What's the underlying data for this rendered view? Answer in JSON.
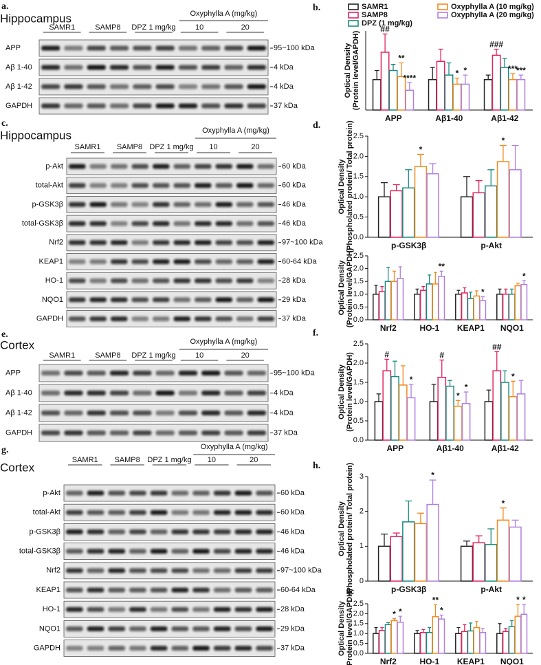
{
  "legend": [
    {
      "name": "SAMR1",
      "color": "#222222"
    },
    {
      "name": "SAMP8",
      "color": "#e0245e"
    },
    {
      "name": "DPZ (1 mg/kg)",
      "color": "#1a8a80"
    },
    {
      "name": "Oxyphylla A (10 mg/kg)",
      "color": "#f28a1e"
    },
    {
      "name": "Oxyphylla A (20 mg/kg)",
      "color": "#b07fe0"
    }
  ],
  "blots": [
    {
      "panel": "a.",
      "title": "Hippocampus",
      "groups": [
        "SAMR1",
        "SAMP8",
        "DPZ 1 mg/kg"
      ],
      "treatment": "Oxyphylla A (mg/kg)",
      "doses": [
        "10",
        "20"
      ],
      "rows": [
        {
          "label": "APP",
          "size": "95~100 kDa"
        },
        {
          "label": "Aβ 1-40",
          "size": "4 kDa"
        },
        {
          "label": "Aβ 1-42",
          "size": "4 kDa"
        },
        {
          "label": "GAPDH",
          "size": "37 kDa"
        }
      ]
    },
    {
      "panel": "c.",
      "title": "Hippocampus",
      "groups": [
        "SAMR1",
        "SAMP8",
        "DPZ 1 mg/kg"
      ],
      "treatment": "Oxyphylla A (mg/kg)",
      "doses": [
        "10",
        "20"
      ],
      "rows": [
        {
          "label": "p-Akt",
          "size": "60 kDa"
        },
        {
          "label": "total-Akt",
          "size": "60 kDa"
        },
        {
          "label": "p-GSK3β",
          "size": "46 kDa"
        },
        {
          "label": "total-GSK3β",
          "size": "46 kDa"
        },
        {
          "label": "Nrf2",
          "size": "97~100 kDa"
        },
        {
          "label": "KEAP1",
          "size": "60-64 kDa"
        },
        {
          "label": "HO-1",
          "size": "28 kDa"
        },
        {
          "label": "NQO1",
          "size": "29 kDa"
        },
        {
          "label": "GAPDH",
          "size": "37 kDa"
        }
      ]
    },
    {
      "panel": "e.",
      "title": "Cortex",
      "groups": [
        "SAMR1",
        "SAMP8",
        "DPZ 1 mg/kg"
      ],
      "treatment": "Oxyphylla A (mg/kg)",
      "doses": [
        "10",
        "20"
      ],
      "rows": [
        {
          "label": "APP",
          "size": "95~100 kDa"
        },
        {
          "label": "Aβ 1-40",
          "size": "4 kDa"
        },
        {
          "label": "Aβ 1-42",
          "size": "4 kDa"
        },
        {
          "label": "GAPDH",
          "size": "37 kDa"
        }
      ]
    },
    {
      "panel": "g.",
      "title": "Cortex",
      "groups": [
        "SAMR1",
        "SAMP8",
        "DPZ 1 mg/kg"
      ],
      "treatment": "Oxyphylla A (mg/kg)",
      "doses": [
        "10",
        "20"
      ],
      "rows": [
        {
          "label": "p-Akt",
          "size": "60 kDa"
        },
        {
          "label": "total-Akt",
          "size": "60 kDa"
        },
        {
          "label": "p-GSK3β",
          "size": "46 kDa"
        },
        {
          "label": "total-GSK3β",
          "size": "46 kDa"
        },
        {
          "label": "Nrf2",
          "size": "97~100 kDa"
        },
        {
          "label": "KEAP1",
          "size": "60-64 kDa"
        },
        {
          "label": "HO-1",
          "size": "28 kDa"
        },
        {
          "label": "NQO1",
          "size": "29 kDa"
        },
        {
          "label": "GAPDH",
          "size": "37 kDa"
        }
      ]
    }
  ],
  "chart_data": [
    {
      "type": "bar",
      "panel": "b.",
      "ylabel": [
        "Optical Density",
        "(Protein level/GAPDH)"
      ],
      "categories": [
        "APP",
        "Aβ1-40",
        "Aβ1-42"
      ],
      "ylim": [
        0,
        2.6
      ],
      "yticks": [],
      "series": [
        {
          "values": [
            1.0,
            1.0,
            1.0
          ],
          "errors": [
            0.3,
            0.4,
            0.15
          ],
          "annotations": [
            null,
            null,
            null
          ]
        },
        {
          "values": [
            1.9,
            1.6,
            1.8
          ],
          "errors": [
            0.6,
            0.4,
            0.2
          ],
          "annotations": [
            "##",
            null,
            "###"
          ]
        },
        {
          "values": [
            1.3,
            1.15,
            1.4
          ],
          "errors": [
            0.2,
            0.4,
            0.3
          ],
          "annotations": [
            null,
            null,
            null
          ]
        },
        {
          "values": [
            1.1,
            0.85,
            1.0
          ],
          "errors": [
            0.45,
            0.2,
            0.2
          ],
          "annotations": [
            "**",
            "*",
            "***"
          ]
        },
        {
          "values": [
            0.65,
            0.85,
            1.0
          ],
          "errors": [
            0.25,
            0.3,
            0.15
          ],
          "annotations": [
            "****",
            "*",
            "***"
          ]
        }
      ]
    },
    {
      "type": "bar",
      "panel": "d.",
      "ylabel": [
        "Optical Density",
        "(Phospholated protein/ Total protein)"
      ],
      "categories": [
        "p-GSK3β",
        "p-Akt"
      ],
      "ylim": [
        0,
        2.5
      ],
      "yticks": [
        {
          "value": 0,
          "label": "0.0"
        },
        0.5,
        {
          "value": 1,
          "label": "1.0"
        },
        1.5,
        {
          "value": 2,
          "label": "2.0"
        },
        2.5
      ],
      "series": [
        {
          "values": [
            1.0,
            1.0
          ],
          "errors": [
            0.35,
            0.5
          ],
          "annotations": [
            null,
            null
          ]
        },
        {
          "values": [
            1.15,
            1.1
          ],
          "errors": [
            0.15,
            0.3
          ],
          "annotations": [
            null,
            null
          ]
        },
        {
          "values": [
            1.22,
            1.27
          ],
          "errors": [
            0.45,
            0.4
          ],
          "annotations": [
            null,
            null
          ]
        },
        {
          "values": [
            1.75,
            1.87
          ],
          "errors": [
            0.3,
            0.4
          ],
          "annotations": [
            "*",
            "*"
          ]
        },
        {
          "values": [
            1.57,
            1.67
          ],
          "errors": [
            0.25,
            0.6
          ],
          "annotations": [
            null,
            null
          ]
        }
      ]
    },
    {
      "type": "bar",
      "ylabel": [
        "Optical Density",
        "(Protein level/GAPDH)"
      ],
      "categories": [
        "Nrf2",
        "HO-1",
        "KEAP1",
        "NQO1"
      ],
      "ylim": [
        0,
        2.5
      ],
      "yticks": [
        {
          "value": 0,
          "label": "0.0"
        },
        0.5,
        {
          "value": 1,
          "label": "1.0"
        },
        1.5,
        {
          "value": 2,
          "label": "2.0"
        },
        2.5
      ],
      "series": [
        {
          "values": [
            1.0,
            1.0,
            1.0,
            1.0
          ],
          "errors": [
            0.35,
            0.2,
            0.15,
            0.2
          ],
          "annotations": [
            null,
            null,
            null,
            null
          ]
        },
        {
          "values": [
            1.1,
            1.15,
            1.05,
            1.0
          ],
          "errors": [
            0.2,
            0.15,
            0.2,
            0.2
          ],
          "annotations": [
            null,
            null,
            null,
            null
          ]
        },
        {
          "values": [
            1.5,
            1.4,
            0.83,
            1.0
          ],
          "errors": [
            0.55,
            0.35,
            0.25,
            0.2
          ],
          "annotations": [
            null,
            null,
            null,
            null
          ]
        },
        {
          "values": [
            1.5,
            1.4,
            0.93,
            1.33
          ],
          "errors": [
            0.4,
            0.45,
            0.2,
            0.1
          ],
          "annotations": [
            null,
            null,
            null,
            null
          ]
        },
        {
          "values": [
            1.62,
            1.7,
            0.75,
            1.38
          ],
          "errors": [
            0.45,
            0.2,
            0.15,
            0.15
          ],
          "annotations": [
            null,
            "**",
            "*",
            "*"
          ]
        }
      ]
    },
    {
      "type": "bar",
      "panel": "f.",
      "ylabel": [
        "Optical Density",
        "(Protein level/GAPDH)"
      ],
      "categories": [
        "APP",
        "Aβ1-40",
        "Aβ1-42"
      ],
      "ylim": [
        0,
        2.5
      ],
      "yticks": [
        {
          "value": 0,
          "label": "0.0"
        },
        0.5,
        {
          "value": 1,
          "label": "1.0"
        },
        1.5,
        {
          "value": 2,
          "label": "2.0"
        },
        2.5
      ],
      "series": [
        {
          "values": [
            1.0,
            1.0,
            1.0
          ],
          "errors": [
            0.2,
            0.45,
            0.3
          ],
          "annotations": [
            null,
            null,
            null
          ]
        },
        {
          "values": [
            1.8,
            1.63,
            1.8
          ],
          "errors": [
            0.3,
            0.45,
            0.5
          ],
          "annotations": [
            "#",
            "#",
            "##"
          ]
        },
        {
          "values": [
            1.65,
            1.4,
            1.5
          ],
          "errors": [
            0.4,
            0.15,
            0.3
          ],
          "annotations": [
            null,
            null,
            null
          ]
        },
        {
          "values": [
            1.43,
            0.88,
            1.13
          ],
          "errors": [
            0.5,
            0.15,
            0.4
          ],
          "annotations": [
            null,
            "*",
            "*"
          ]
        },
        {
          "values": [
            1.1,
            0.95,
            1.2
          ],
          "errors": [
            0.35,
            0.3,
            0.35
          ],
          "annotations": [
            "*",
            "*",
            null
          ]
        }
      ]
    },
    {
      "type": "bar",
      "panel": "h.",
      "ylabel": [
        "Optical Density",
        "(Phospholated protein/ Total protein)"
      ],
      "categories": [
        "p-GSK3β",
        "p-Akt"
      ],
      "ylim": [
        0,
        3
      ],
      "yticks": [
        0,
        1,
        2,
        3
      ],
      "series": [
        {
          "values": [
            1.0,
            1.0
          ],
          "errors": [
            0.35,
            0.15
          ],
          "annotations": [
            null,
            null
          ]
        },
        {
          "values": [
            1.28,
            1.1
          ],
          "errors": [
            0.1,
            0.2
          ],
          "annotations": [
            null,
            null
          ]
        },
        {
          "values": [
            1.7,
            1.05
          ],
          "errors": [
            0.6,
            0.45
          ],
          "annotations": [
            null,
            null
          ]
        },
        {
          "values": [
            1.65,
            1.75
          ],
          "errors": [
            0.3,
            0.35
          ],
          "annotations": [
            null,
            "*"
          ]
        },
        {
          "values": [
            2.2,
            1.55
          ],
          "errors": [
            0.7,
            0.2
          ],
          "annotations": [
            "*",
            null
          ]
        }
      ]
    },
    {
      "type": "bar",
      "ylabel": [
        "Optical Density",
        "(Protein level/GAPDH)"
      ],
      "categories": [
        "Nrf2",
        "HO-1",
        "KEAP1",
        "NQO1"
      ],
      "ylim": [
        0,
        2.5
      ],
      "yticks": [
        {
          "value": 0,
          "label": "0.0"
        },
        0.5,
        {
          "value": 1,
          "label": "1.0"
        },
        1.5,
        {
          "value": 2,
          "label": "2.0"
        },
        2.5
      ],
      "series": [
        {
          "values": [
            1.0,
            1.0,
            1.0,
            1.0
          ],
          "errors": [
            0.3,
            0.15,
            0.3,
            0.5
          ],
          "annotations": [
            null,
            null,
            null,
            null
          ]
        },
        {
          "values": [
            1.15,
            1.05,
            1.1,
            1.1
          ],
          "errors": [
            0.15,
            0.15,
            0.35,
            0.15
          ],
          "annotations": [
            null,
            null,
            null,
            null
          ]
        },
        {
          "values": [
            1.45,
            1.05,
            1.13,
            1.35
          ],
          "errors": [
            0.1,
            0.25,
            0.4,
            0.3
          ],
          "annotations": [
            null,
            null,
            null,
            null
          ]
        },
        {
          "values": [
            1.65,
            1.85,
            1.3,
            1.87
          ],
          "errors": [
            0.1,
            0.6,
            0.3,
            0.6
          ],
          "annotations": [
            "*",
            "**",
            null,
            "*"
          ]
        },
        {
          "values": [
            1.57,
            1.73,
            1.05,
            1.97
          ],
          "errors": [
            0.3,
            0.2,
            0.2,
            0.5
          ],
          "annotations": [
            "*",
            "*",
            null,
            "*"
          ]
        }
      ]
    }
  ]
}
